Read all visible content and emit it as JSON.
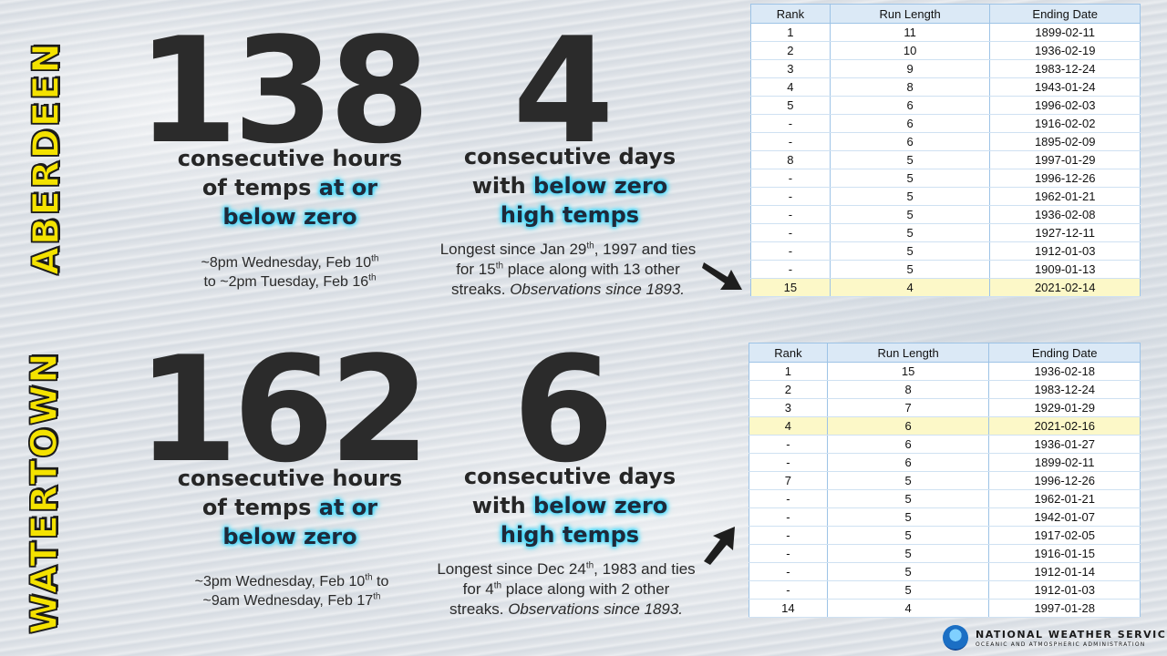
{
  "aberdeen": {
    "label": "ABERDEEN",
    "hours": "138",
    "hours_caption_1": "consecutive hours",
    "hours_caption_2a": "of temps ",
    "hours_caption_2b": "at or",
    "hours_caption_3": "below zero",
    "days": "4",
    "days_caption_1": "consecutive days",
    "days_caption_2a": "with ",
    "days_caption_2b": "below zero",
    "days_caption_3": "high temps",
    "period_line1": "~8pm Wednesday, Feb 10",
    "period_line1_sup": "th",
    "period_line2": "to ~2pm Tuesday, Feb 16",
    "period_line2_sup": "th",
    "note_a": "Longest since Jan 29",
    "note_a_sup": "th",
    "note_b": ", 1997 and ties",
    "note_c": "for 15",
    "note_c_sup": "th",
    "note_d": " place along with 13 other",
    "note_e": "streaks. ",
    "note_f": "Observations since 1893.",
    "table": {
      "headers": [
        "Rank",
        "Run Length",
        "Ending Date"
      ],
      "rows": [
        [
          "1",
          "11",
          "1899-02-11"
        ],
        [
          "2",
          "10",
          "1936-02-19"
        ],
        [
          "3",
          "9",
          "1983-12-24"
        ],
        [
          "4",
          "8",
          "1943-01-24"
        ],
        [
          "5",
          "6",
          "1996-02-03"
        ],
        [
          "-",
          "6",
          "1916-02-02"
        ],
        [
          "-",
          "6",
          "1895-02-09"
        ],
        [
          "8",
          "5",
          "1997-01-29"
        ],
        [
          "-",
          "5",
          "1996-12-26"
        ],
        [
          "-",
          "5",
          "1962-01-21"
        ],
        [
          "-",
          "5",
          "1936-02-08"
        ],
        [
          "-",
          "5",
          "1927-12-11"
        ],
        [
          "-",
          "5",
          "1912-01-03"
        ],
        [
          "-",
          "5",
          "1909-01-13"
        ],
        [
          "15",
          "4",
          "2021-02-14"
        ]
      ]
    }
  },
  "watertown": {
    "label": "WATERTOWN",
    "hours": "162",
    "hours_caption_1": "consecutive hours",
    "hours_caption_2a": "of temps ",
    "hours_caption_2b": "at or",
    "hours_caption_3": "below zero",
    "days": "6",
    "days_caption_1": "consecutive days",
    "days_caption_2a": "with ",
    "days_caption_2b": "below zero",
    "days_caption_3": "high temps",
    "period_line1": "~3pm Wednesday, Feb 10",
    "period_line1_sup": "th",
    "period_line1_tail": " to",
    "period_line2": "~9am Wednesday, Feb 17",
    "period_line2_sup": "th",
    "note_a": "Longest since Dec 24",
    "note_a_sup": "th",
    "note_b": ", 1983 and ties",
    "note_c": "for 4",
    "note_c_sup": "th",
    "note_d": " place along with 2 other",
    "note_e": "streaks. ",
    "note_f": "Observations since 1893.",
    "table": {
      "headers": [
        "Rank",
        "Run Length",
        "Ending Date"
      ],
      "rows": [
        [
          "1",
          "15",
          "1936-02-18"
        ],
        [
          "2",
          "8",
          "1983-12-24"
        ],
        [
          "3",
          "7",
          "1929-01-29"
        ],
        [
          "4",
          "6",
          "2021-02-16"
        ],
        [
          "-",
          "6",
          "1936-01-27"
        ],
        [
          "-",
          "6",
          "1899-02-11"
        ],
        [
          "7",
          "5",
          "1996-12-26"
        ],
        [
          "-",
          "5",
          "1962-01-21"
        ],
        [
          "-",
          "5",
          "1942-01-07"
        ],
        [
          "-",
          "5",
          "1917-02-05"
        ],
        [
          "-",
          "5",
          "1916-01-15"
        ],
        [
          "-",
          "5",
          "1912-01-14"
        ],
        [
          "-",
          "5",
          "1912-01-03"
        ],
        [
          "14",
          "4",
          "1997-01-28"
        ]
      ]
    }
  },
  "footer": {
    "org": "NATIONAL WEATHER SERVICE",
    "suborg": "OCEANIC AND ATMOSPHERIC ADMINISTRATION"
  }
}
